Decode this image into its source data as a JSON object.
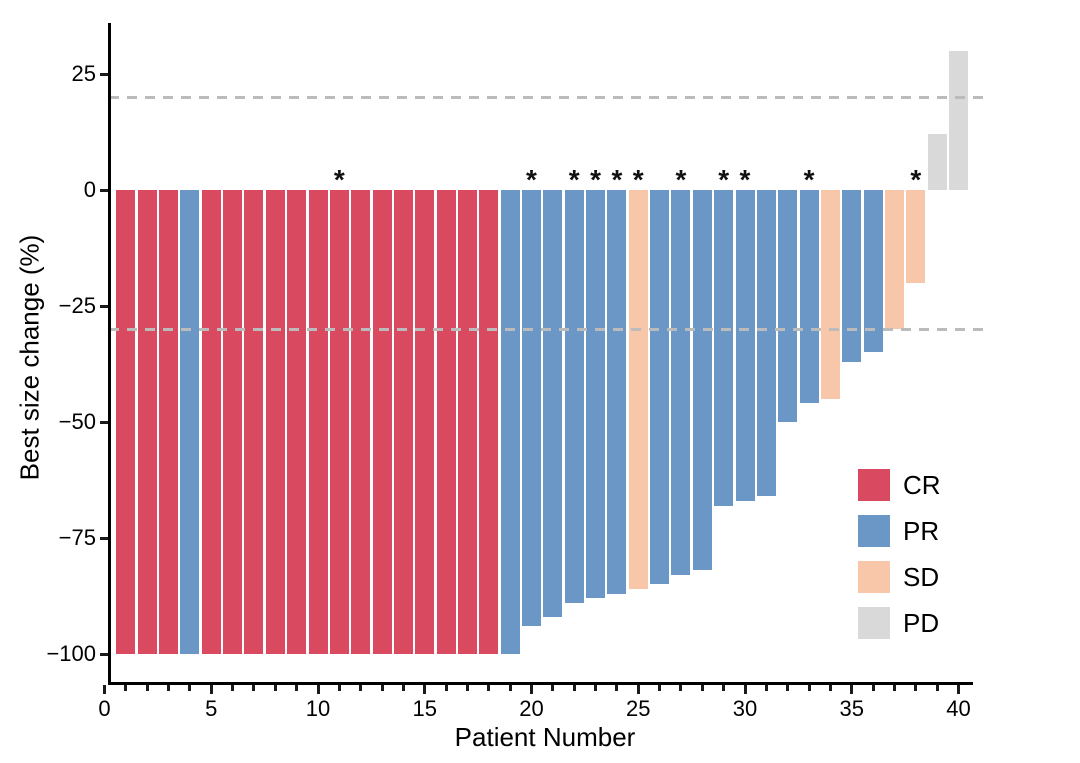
{
  "chart_data": {
    "type": "bar",
    "title": "",
    "xlabel": "Patient Number",
    "ylabel": "Best size change (%)",
    "xlim": [
      0,
      40.6
    ],
    "ylim": [
      -106,
      36
    ],
    "x_ticks": [
      0,
      5,
      10,
      15,
      20,
      25,
      30,
      35,
      40
    ],
    "x_minor_tick_step": 1,
    "y_ticks": [
      25,
      0,
      -25,
      -50,
      -75,
      -100
    ],
    "grid": false,
    "annotation_symbol": "*",
    "reference_lines": {
      "style": "dashed",
      "color": "#bbbbbb",
      "values": [
        20,
        -30
      ]
    },
    "colors": {
      "CR": "#d9495f",
      "PR": "#6b97c6",
      "SD": "#f8c6a8",
      "PD": "#d9d9d9"
    },
    "legend": {
      "position": "inside-right",
      "entries": [
        {
          "label": "CR",
          "color": "#d9495f"
        },
        {
          "label": "PR",
          "color": "#6b97c6"
        },
        {
          "label": "SD",
          "color": "#f8c6a8"
        },
        {
          "label": "PD",
          "color": "#d9d9d9"
        }
      ]
    },
    "patients": [
      {
        "patient": 1,
        "value": -100,
        "response": "CR",
        "asterisk": false
      },
      {
        "patient": 2,
        "value": -100,
        "response": "CR",
        "asterisk": false
      },
      {
        "patient": 3,
        "value": -100,
        "response": "CR",
        "asterisk": false
      },
      {
        "patient": 4,
        "value": -100,
        "response": "PR",
        "asterisk": false
      },
      {
        "patient": 5,
        "value": -100,
        "response": "CR",
        "asterisk": false
      },
      {
        "patient": 6,
        "value": -100,
        "response": "CR",
        "asterisk": false
      },
      {
        "patient": 7,
        "value": -100,
        "response": "CR",
        "asterisk": false
      },
      {
        "patient": 8,
        "value": -100,
        "response": "CR",
        "asterisk": false
      },
      {
        "patient": 9,
        "value": -100,
        "response": "CR",
        "asterisk": false
      },
      {
        "patient": 10,
        "value": -100,
        "response": "CR",
        "asterisk": false
      },
      {
        "patient": 11,
        "value": -100,
        "response": "CR",
        "asterisk": true
      },
      {
        "patient": 12,
        "value": -100,
        "response": "CR",
        "asterisk": false
      },
      {
        "patient": 13,
        "value": -100,
        "response": "CR",
        "asterisk": false
      },
      {
        "patient": 14,
        "value": -100,
        "response": "CR",
        "asterisk": false
      },
      {
        "patient": 15,
        "value": -100,
        "response": "CR",
        "asterisk": false
      },
      {
        "patient": 16,
        "value": -100,
        "response": "CR",
        "asterisk": false
      },
      {
        "patient": 17,
        "value": -100,
        "response": "CR",
        "asterisk": false
      },
      {
        "patient": 18,
        "value": -100,
        "response": "CR",
        "asterisk": false
      },
      {
        "patient": 19,
        "value": -100,
        "response": "PR",
        "asterisk": false
      },
      {
        "patient": 20,
        "value": -94,
        "response": "PR",
        "asterisk": true
      },
      {
        "patient": 21,
        "value": -92,
        "response": "PR",
        "asterisk": false
      },
      {
        "patient": 22,
        "value": -89,
        "response": "PR",
        "asterisk": true
      },
      {
        "patient": 23,
        "value": -88,
        "response": "PR",
        "asterisk": true
      },
      {
        "patient": 24,
        "value": -87,
        "response": "PR",
        "asterisk": true
      },
      {
        "patient": 25,
        "value": -86,
        "response": "SD",
        "asterisk": true
      },
      {
        "patient": 26,
        "value": -85,
        "response": "PR",
        "asterisk": false
      },
      {
        "patient": 27,
        "value": -83,
        "response": "PR",
        "asterisk": true
      },
      {
        "patient": 28,
        "value": -82,
        "response": "PR",
        "asterisk": false
      },
      {
        "patient": 29,
        "value": -68,
        "response": "PR",
        "asterisk": true
      },
      {
        "patient": 30,
        "value": -67,
        "response": "PR",
        "asterisk": true
      },
      {
        "patient": 31,
        "value": -66,
        "response": "PR",
        "asterisk": false
      },
      {
        "patient": 32,
        "value": -50,
        "response": "PR",
        "asterisk": false
      },
      {
        "patient": 33,
        "value": -46,
        "response": "PR",
        "asterisk": true
      },
      {
        "patient": 34,
        "value": -45,
        "response": "SD",
        "asterisk": false
      },
      {
        "patient": 35,
        "value": -37,
        "response": "PR",
        "asterisk": false
      },
      {
        "patient": 36,
        "value": -35,
        "response": "PR",
        "asterisk": false
      },
      {
        "patient": 37,
        "value": -30,
        "response": "SD",
        "asterisk": false
      },
      {
        "patient": 38,
        "value": -20,
        "response": "SD",
        "asterisk": true
      },
      {
        "patient": 39,
        "value": 12,
        "response": "PD",
        "asterisk": false
      },
      {
        "patient": 40,
        "value": 30,
        "response": "PD",
        "asterisk": false
      }
    ]
  }
}
